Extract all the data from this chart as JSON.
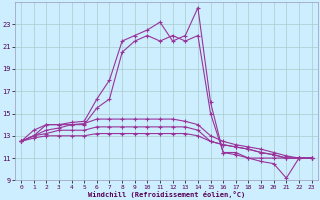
{
  "xlabel": "Windchill (Refroidissement éolien,°C)",
  "background_color": "#cceeff",
  "grid_color": "#aacccc",
  "line_color": "#993399",
  "x_values": [
    0,
    1,
    2,
    3,
    4,
    5,
    6,
    7,
    8,
    9,
    10,
    11,
    12,
    13,
    14,
    15,
    16,
    17,
    18,
    19,
    20,
    21,
    22,
    23
  ],
  "lines": [
    [
      12.5,
      13.0,
      14.0,
      14.0,
      14.2,
      14.3,
      16.3,
      18.0,
      21.5,
      22.0,
      22.5,
      23.2,
      21.5,
      22.0,
      24.5,
      16.0,
      11.5,
      11.5,
      11.0,
      10.7,
      10.5,
      9.2,
      11.0,
      11.0
    ],
    [
      12.5,
      13.5,
      14.0,
      14.0,
      14.0,
      14.0,
      15.5,
      16.3,
      20.5,
      21.5,
      22.0,
      21.5,
      22.0,
      21.5,
      22.0,
      15.0,
      11.5,
      11.3,
      11.0,
      11.0,
      11.0,
      11.0,
      11.0,
      11.0
    ],
    [
      12.5,
      13.0,
      13.5,
      13.7,
      14.0,
      14.1,
      14.5,
      14.5,
      14.5,
      14.5,
      14.5,
      14.5,
      14.5,
      14.3,
      14.0,
      13.0,
      12.5,
      12.2,
      12.0,
      11.8,
      11.5,
      11.2,
      11.0,
      11.0
    ],
    [
      12.5,
      13.0,
      13.2,
      13.5,
      13.5,
      13.5,
      13.8,
      13.8,
      13.8,
      13.8,
      13.8,
      13.8,
      13.8,
      13.8,
      13.5,
      12.5,
      12.2,
      12.0,
      11.8,
      11.5,
      11.3,
      11.0,
      11.0,
      11.0
    ],
    [
      12.5,
      12.8,
      13.0,
      13.0,
      13.0,
      13.0,
      13.2,
      13.2,
      13.2,
      13.2,
      13.2,
      13.2,
      13.2,
      13.2,
      13.0,
      12.5,
      12.2,
      12.0,
      11.8,
      11.5,
      11.3,
      11.0,
      11.0,
      11.0
    ]
  ],
  "xlim": [
    -0.5,
    23.5
  ],
  "ylim": [
    9,
    25
  ],
  "yticks": [
    9,
    11,
    13,
    15,
    17,
    19,
    21,
    23
  ],
  "xticks": [
    0,
    1,
    2,
    3,
    4,
    5,
    6,
    7,
    8,
    9,
    10,
    11,
    12,
    13,
    14,
    15,
    16,
    17,
    18,
    19,
    20,
    21,
    22,
    23
  ],
  "marker": "+",
  "markersize": 3,
  "linewidth": 0.8
}
